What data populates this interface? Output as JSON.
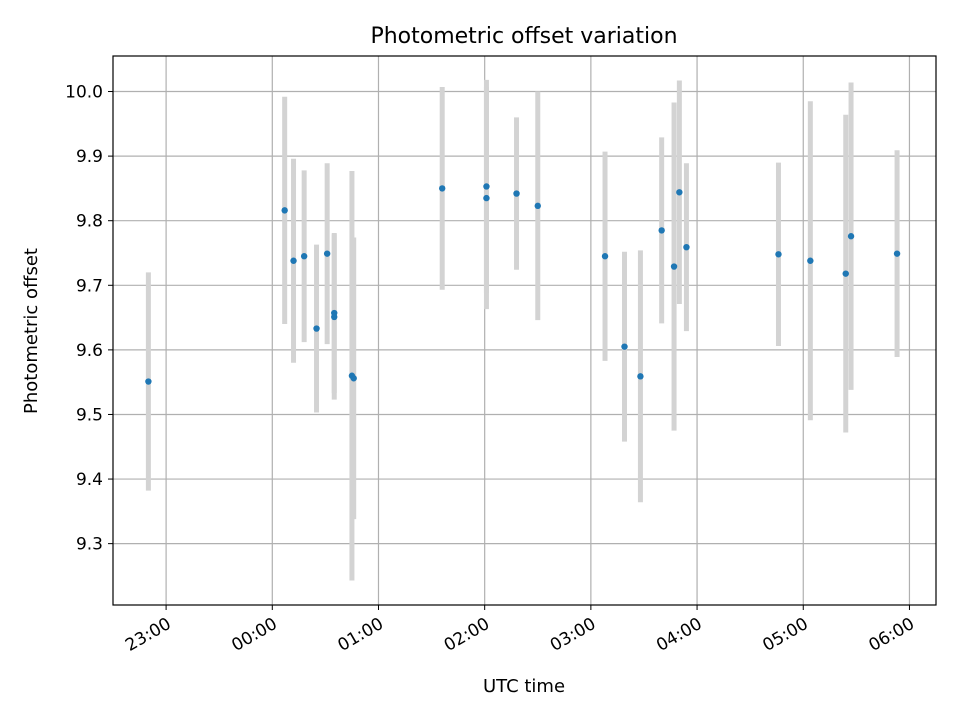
{
  "chart_data": {
    "type": "scatter",
    "title": "Photometric offset variation",
    "xlabel": "UTC time",
    "ylabel": "Photometric offset",
    "x_unit": "UTC",
    "x_ticks": [
      "23:00",
      "00:00",
      "01:00",
      "02:00",
      "03:00",
      "04:00",
      "05:00",
      "06:00"
    ],
    "xlim": [
      "22:30",
      "06:15"
    ],
    "ylim": [
      9.205,
      10.055
    ],
    "y_ticks": [
      9.3,
      9.4,
      9.5,
      9.6,
      9.7,
      9.8,
      9.9,
      10.0
    ],
    "grid": true,
    "marker_color": "#1f77b4",
    "errorbar_color": "#d3d3d3",
    "series": [
      {
        "points": [
          {
            "x": "22:50",
            "y": 9.551,
            "err": 0.169
          },
          {
            "x": "00:07",
            "y": 9.816,
            "err": 0.176
          },
          {
            "x": "00:12",
            "y": 9.738,
            "err": 0.158
          },
          {
            "x": "00:18",
            "y": 9.745,
            "err": 0.133
          },
          {
            "x": "00:25",
            "y": 9.633,
            "err": 0.13
          },
          {
            "x": "00:31",
            "y": 9.749,
            "err": 0.14
          },
          {
            "x": "00:35",
            "y": 9.657,
            "err": 0.124
          },
          {
            "x": "00:35",
            "y": 9.651,
            "err": 0.128
          },
          {
            "x": "00:45",
            "y": 9.56,
            "err": 0.317
          },
          {
            "x": "00:46",
            "y": 9.556,
            "err": 0.218
          },
          {
            "x": "01:36",
            "y": 9.85,
            "err": 0.157
          },
          {
            "x": "02:01",
            "y": 9.835,
            "err": 0.172
          },
          {
            "x": "02:01",
            "y": 9.853,
            "err": 0.165
          },
          {
            "x": "02:18",
            "y": 9.842,
            "err": 0.118
          },
          {
            "x": "02:30",
            "y": 9.823,
            "err": 0.177
          },
          {
            "x": "03:08",
            "y": 9.745,
            "err": 0.162
          },
          {
            "x": "03:19",
            "y": 9.605,
            "err": 0.147
          },
          {
            "x": "03:28",
            "y": 9.559,
            "err": 0.195
          },
          {
            "x": "03:40",
            "y": 9.785,
            "err": 0.144
          },
          {
            "x": "03:47",
            "y": 9.729,
            "err": 0.254
          },
          {
            "x": "03:50",
            "y": 9.844,
            "err": 0.173
          },
          {
            "x": "03:54",
            "y": 9.759,
            "err": 0.13
          },
          {
            "x": "04:46",
            "y": 9.748,
            "err": 0.142
          },
          {
            "x": "05:04",
            "y": 9.738,
            "err": 0.247
          },
          {
            "x": "05:24",
            "y": 9.718,
            "err": 0.246
          },
          {
            "x": "05:27",
            "y": 9.776,
            "err": 0.238
          },
          {
            "x": "05:53",
            "y": 9.749,
            "err": 0.16
          }
        ]
      }
    ]
  }
}
